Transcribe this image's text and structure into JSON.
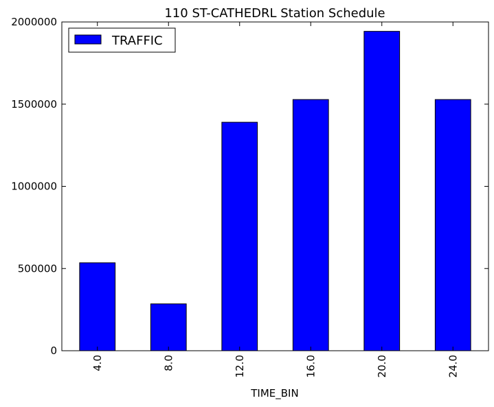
{
  "chart_data": {
    "type": "bar",
    "title": "110 ST-CATHEDRL Station Schedule",
    "xlabel": "TIME_BIN",
    "ylabel": "",
    "categories": [
      "4.0",
      "8.0",
      "12.0",
      "16.0",
      "20.0",
      "24.0"
    ],
    "series": [
      {
        "name": "TRAFFIC",
        "values": [
          535000,
          285000,
          1390000,
          1528000,
          1943000,
          1528000
        ],
        "color": "#0000ff"
      }
    ],
    "ylim": [
      0,
      2000000
    ],
    "yticks": [
      0,
      500000,
      1000000,
      1500000,
      2000000
    ],
    "ytick_labels": [
      "0",
      "500000",
      "1000000",
      "1500000",
      "2000000"
    ],
    "grid": false,
    "legend": "top-left"
  }
}
